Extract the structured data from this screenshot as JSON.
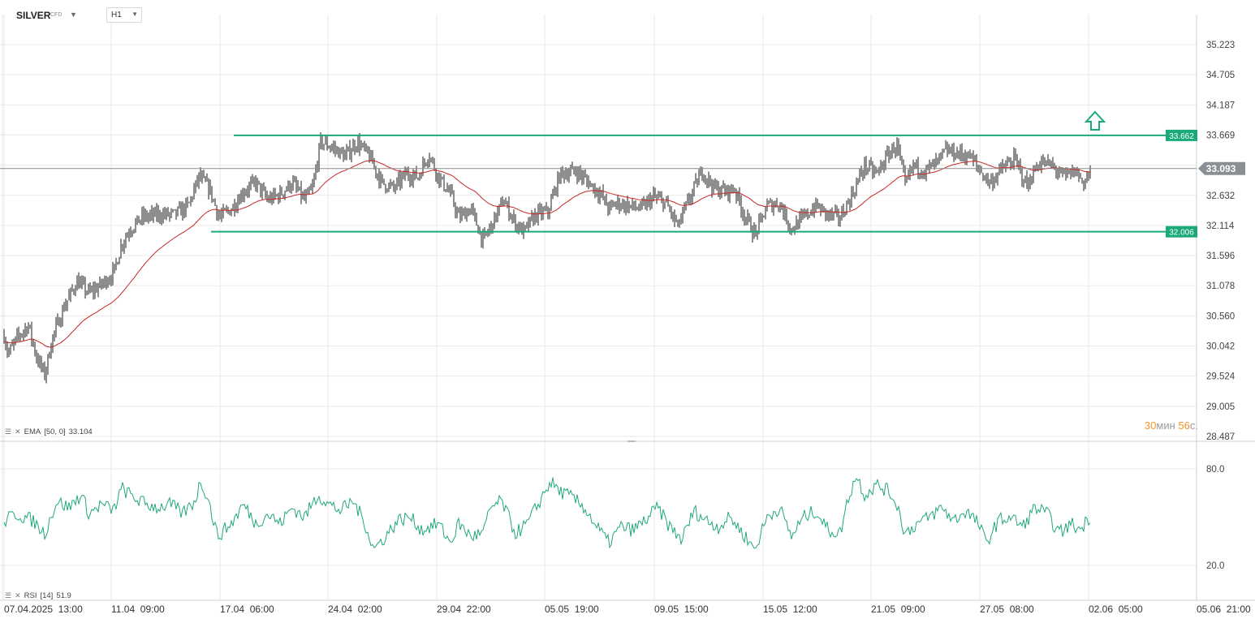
{
  "header": {
    "symbol": "SILVER",
    "symbol_suffix": "CFD",
    "timeframe": "H1"
  },
  "indicators": {
    "ema": {
      "name": "EMA",
      "params": "[50, 0]",
      "value": "33.104",
      "color": "#c62828"
    },
    "rsi": {
      "name": "RSI",
      "params": "[14]",
      "value": "51.9",
      "color": "#21a77f"
    }
  },
  "timer": {
    "minutes": "30",
    "minutes_unit": "мин",
    "seconds": "56",
    "seconds_unit": "с."
  },
  "colors": {
    "candle": "#1c1c1c",
    "levels": "#1aaa7a",
    "arrow": "#1aaa7a",
    "grid": "#eaeaea"
  },
  "chart_data": {
    "type": "candlestick",
    "symbol": "SILVER",
    "timeframe": "H1",
    "price_axis": {
      "ticks": [
        35.223,
        34.705,
        34.187,
        33.669,
        33.151,
        32.632,
        32.114,
        31.596,
        31.078,
        30.56,
        30.042,
        29.524,
        29.005,
        28.487
      ],
      "tick_labels": [
        "35.223",
        "34.705",
        "34.187",
        "33.669",
        "",
        "32.632",
        "32.114",
        "31.596",
        "31.078",
        "30.560",
        "30.042",
        "29.524",
        "29.005",
        "28.487"
      ]
    },
    "rsi_axis": {
      "ticks": [
        80.0,
        20.0
      ],
      "tick_labels": [
        "80.0",
        "20.0"
      ],
      "range": [
        14,
        88
      ]
    },
    "time_axis": {
      "labels": [
        "07.04.2025  13:00",
        "11.04  09:00",
        "17.04  06:00",
        "24.04  02:00",
        "29.04  22:00",
        "05.05  19:00",
        "09.05  15:00",
        "15.05  12:00",
        "21.05  09:00",
        "27.05  08:00",
        "02.06  05:00",
        "05.06  21:00"
      ]
    },
    "last_price": "33.093",
    "levels": [
      {
        "name": "resistance",
        "price": 33.662,
        "label": "33.662"
      },
      {
        "name": "support",
        "price": 32.006,
        "label": "32.006"
      }
    ],
    "price_path": [
      [
        0,
        30.55
      ],
      [
        10,
        29.9
      ],
      [
        22,
        30.2
      ],
      [
        35,
        30.4
      ],
      [
        45,
        29.85
      ],
      [
        55,
        29.55
      ],
      [
        65,
        30.2
      ],
      [
        80,
        30.75
      ],
      [
        95,
        31.15
      ],
      [
        110,
        30.95
      ],
      [
        125,
        31.1
      ],
      [
        140,
        31.3
      ],
      [
        150,
        31.8
      ],
      [
        160,
        32.05
      ],
      [
        175,
        32.25
      ],
      [
        195,
        32.3
      ],
      [
        215,
        32.3
      ],
      [
        232,
        32.45
      ],
      [
        245,
        32.95
      ],
      [
        258,
        32.75
      ],
      [
        270,
        32.25
      ],
      [
        285,
        32.4
      ],
      [
        300,
        32.7
      ],
      [
        315,
        32.85
      ],
      [
        330,
        32.55
      ],
      [
        345,
        32.65
      ],
      [
        360,
        32.85
      ],
      [
        375,
        32.55
      ],
      [
        385,
        32.75
      ],
      [
        395,
        33.55
      ],
      [
        410,
        33.45
      ],
      [
        425,
        33.3
      ],
      [
        440,
        33.55
      ],
      [
        455,
        33.3
      ],
      [
        470,
        32.85
      ],
      [
        485,
        32.75
      ],
      [
        500,
        33.0
      ],
      [
        515,
        32.95
      ],
      [
        528,
        33.35
      ],
      [
        540,
        32.95
      ],
      [
        555,
        32.65
      ],
      [
        565,
        32.25
      ],
      [
        580,
        32.4
      ],
      [
        595,
        31.85
      ],
      [
        605,
        32.1
      ],
      [
        620,
        32.55
      ],
      [
        635,
        32.15
      ],
      [
        645,
        32.0
      ],
      [
        660,
        32.3
      ],
      [
        675,
        32.35
      ],
      [
        690,
        33.0
      ],
      [
        710,
        33.05
      ],
      [
        725,
        32.85
      ],
      [
        740,
        32.65
      ],
      [
        750,
        32.4
      ],
      [
        760,
        32.5
      ],
      [
        775,
        32.45
      ],
      [
        790,
        32.4
      ],
      [
        805,
        32.6
      ],
      [
        820,
        32.5
      ],
      [
        835,
        32.1
      ],
      [
        850,
        32.6
      ],
      [
        865,
        33.05
      ],
      [
        880,
        32.75
      ],
      [
        895,
        32.7
      ],
      [
        905,
        32.75
      ],
      [
        915,
        32.35
      ],
      [
        930,
        31.95
      ],
      [
        945,
        32.45
      ],
      [
        960,
        32.5
      ],
      [
        975,
        32.05
      ],
      [
        990,
        32.25
      ],
      [
        1005,
        32.45
      ],
      [
        1020,
        32.3
      ],
      [
        1035,
        32.25
      ],
      [
        1050,
        32.65
      ],
      [
        1065,
        33.15
      ],
      [
        1080,
        33.0
      ],
      [
        1095,
        33.35
      ],
      [
        1105,
        33.5
      ],
      [
        1115,
        32.8
      ],
      [
        1125,
        33.15
      ],
      [
        1140,
        33.05
      ],
      [
        1155,
        33.2
      ],
      [
        1165,
        33.4
      ],
      [
        1180,
        33.35
      ],
      [
        1195,
        33.3
      ],
      [
        1210,
        33.0
      ],
      [
        1220,
        32.85
      ],
      [
        1235,
        33.1
      ],
      [
        1250,
        33.25
      ],
      [
        1265,
        32.8
      ],
      [
        1280,
        33.2
      ],
      [
        1295,
        33.15
      ],
      [
        1310,
        32.95
      ],
      [
        1325,
        33.05
      ],
      [
        1335,
        32.85
      ],
      [
        1345,
        33.093
      ]
    ],
    "rsi_path": [
      [
        0,
        46
      ],
      [
        20,
        52
      ],
      [
        40,
        48
      ],
      [
        55,
        40
      ],
      [
        70,
        60
      ],
      [
        85,
        56
      ],
      [
        100,
        64
      ],
      [
        110,
        52
      ],
      [
        125,
        58
      ],
      [
        140,
        54
      ],
      [
        150,
        68
      ],
      [
        165,
        62
      ],
      [
        180,
        58
      ],
      [
        195,
        56
      ],
      [
        210,
        58
      ],
      [
        225,
        52
      ],
      [
        240,
        60
      ],
      [
        247,
        72
      ],
      [
        255,
        64
      ],
      [
        268,
        38
      ],
      [
        285,
        46
      ],
      [
        300,
        58
      ],
      [
        315,
        46
      ],
      [
        330,
        52
      ],
      [
        345,
        46
      ],
      [
        360,
        56
      ],
      [
        375,
        50
      ],
      [
        392,
        64
      ],
      [
        405,
        58
      ],
      [
        420,
        54
      ],
      [
        435,
        60
      ],
      [
        450,
        46
      ],
      [
        460,
        30
      ],
      [
        475,
        38
      ],
      [
        490,
        48
      ],
      [
        505,
        50
      ],
      [
        520,
        42
      ],
      [
        540,
        46
      ],
      [
        555,
        34
      ],
      [
        565,
        46
      ],
      [
        580,
        38
      ],
      [
        595,
        40
      ],
      [
        605,
        56
      ],
      [
        618,
        60
      ],
      [
        635,
        40
      ],
      [
        650,
        46
      ],
      [
        665,
        60
      ],
      [
        678,
        72
      ],
      [
        690,
        66
      ],
      [
        705,
        62
      ],
      [
        720,
        56
      ],
      [
        735,
        44
      ],
      [
        750,
        34
      ],
      [
        765,
        44
      ],
      [
        780,
        42
      ],
      [
        795,
        48
      ],
      [
        810,
        56
      ],
      [
        825,
        44
      ],
      [
        840,
        36
      ],
      [
        855,
        54
      ],
      [
        870,
        48
      ],
      [
        885,
        44
      ],
      [
        900,
        50
      ],
      [
        915,
        40
      ],
      [
        930,
        30
      ],
      [
        945,
        50
      ],
      [
        960,
        56
      ],
      [
        975,
        38
      ],
      [
        990,
        50
      ],
      [
        1005,
        54
      ],
      [
        1020,
        42
      ],
      [
        1035,
        40
      ],
      [
        1045,
        62
      ],
      [
        1055,
        76
      ],
      [
        1065,
        64
      ],
      [
        1080,
        70
      ],
      [
        1095,
        66
      ],
      [
        1105,
        58
      ],
      [
        1115,
        40
      ],
      [
        1130,
        46
      ],
      [
        1145,
        50
      ],
      [
        1160,
        56
      ],
      [
        1175,
        48
      ],
      [
        1190,
        54
      ],
      [
        1205,
        46
      ],
      [
        1215,
        34
      ],
      [
        1230,
        48
      ],
      [
        1245,
        50
      ],
      [
        1260,
        44
      ],
      [
        1275,
        56
      ],
      [
        1290,
        52
      ],
      [
        1305,
        40
      ],
      [
        1320,
        46
      ],
      [
        1330,
        42
      ],
      [
        1345,
        51.9
      ]
    ]
  }
}
